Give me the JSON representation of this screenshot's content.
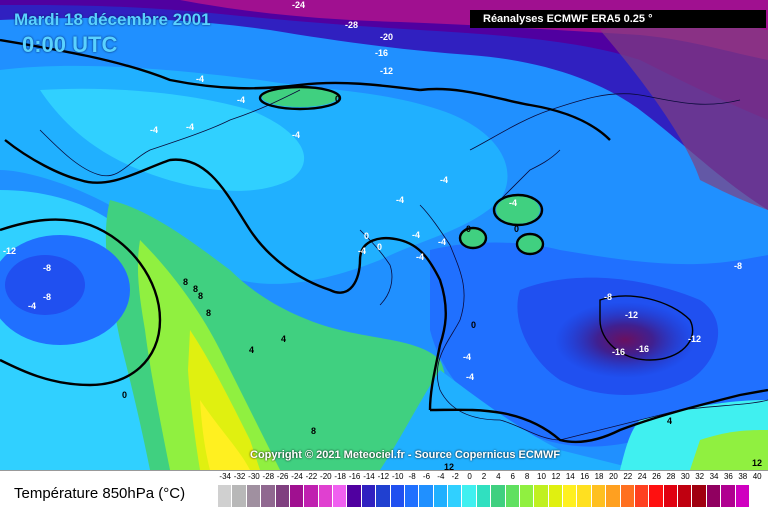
{
  "header": {
    "date": "Mardi 18 décembre 2001",
    "time": "0:00 UTC",
    "source": "Réanalyses ECMWF ERA5 0.25 °",
    "copyright": "Copyright © 2021 Meteociel.fr - Source Copernicus ECMWF"
  },
  "legend": {
    "title": "Température 850hPa (°C)",
    "ticks": [
      "-34",
      "-32",
      "-30",
      "-28",
      "-26",
      "-24",
      "-22",
      "-20",
      "-18",
      "-16",
      "-14",
      "-12",
      "-10",
      "-8",
      "-6",
      "-4",
      "-2",
      "0",
      "2",
      "4",
      "6",
      "8",
      "10",
      "12",
      "14",
      "16",
      "18",
      "20",
      "22",
      "24",
      "26",
      "28",
      "30",
      "32",
      "34",
      "36",
      "38",
      "40"
    ],
    "colors": [
      "#d0d0d0",
      "#b8b8b8",
      "#a090a0",
      "#906890",
      "#804080",
      "#a01090",
      "#c020b0",
      "#e040d0",
      "#f060f0",
      "#5000a0",
      "#3020c0",
      "#2040d0",
      "#2050f0",
      "#2070ff",
      "#2090ff",
      "#20b0ff",
      "#30d0ff",
      "#40f0f0",
      "#30e0c0",
      "#40d080",
      "#60e060",
      "#90f040",
      "#c0f020",
      "#e0f010",
      "#fff020",
      "#ffe020",
      "#ffc020",
      "#ffa020",
      "#ff7020",
      "#ff4020",
      "#ff1010",
      "#e00010",
      "#c00010",
      "#a00010",
      "#900060",
      "#b00090",
      "#d000c0"
    ]
  },
  "contour_labels": [
    "-24",
    "-28",
    "-16",
    "-20",
    "-12",
    "-4",
    "-4",
    "0",
    "-4",
    "-4",
    "-4",
    "-4",
    "-4",
    "0",
    "0",
    "-4",
    "-4",
    "-4",
    "0",
    "-4",
    "-4",
    "0",
    "-8",
    "-12",
    "-12",
    "-16",
    "-16",
    "-8",
    "-8",
    "-4",
    "-4",
    "4",
    "4",
    "8",
    "8",
    "8",
    "8",
    "0",
    "0",
    "-12",
    "4",
    "12",
    "12",
    "8",
    "-4",
    "-8"
  ]
}
